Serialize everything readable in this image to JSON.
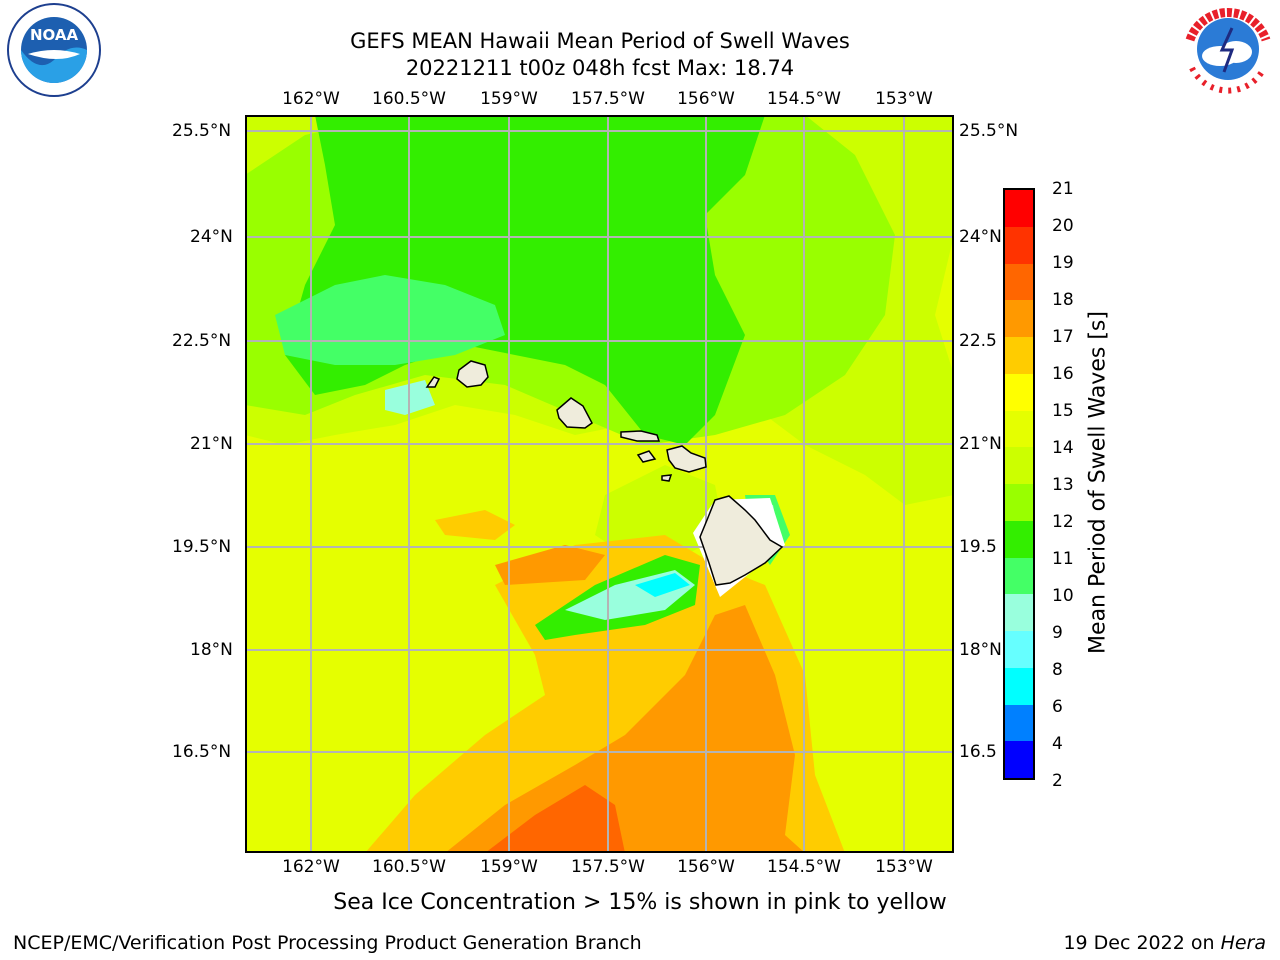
{
  "title": {
    "line1": "GEFS MEAN Hawaii Mean Period of Swell Waves",
    "line2": "20221211 t00z 048h fcst   Max: 18.74"
  },
  "logos": {
    "left": "NOAA",
    "left_ring": "NATIONAL OCEANIC AND ATMOSPHERIC ADMINISTRATION · U.S. DEPARTMENT OF COMMERCE",
    "right_ring": "NATIONAL WEATHER SERVICE"
  },
  "map": {
    "lon_labels": [
      "162°W",
      "160.5°W",
      "159°W",
      "157.5°W",
      "156°W",
      "154.5°W",
      "153°W"
    ],
    "lat_labels_left": [
      "25.5°N",
      "24°N",
      "22.5°N",
      "21°N",
      "19.5°N",
      "18°N",
      "16.5°N"
    ],
    "lat_labels_right": [
      "25.5°N",
      "24°N",
      "22.5",
      "21°N",
      "19.5",
      "18°N",
      "16.5"
    ],
    "grid": true
  },
  "colorbar": {
    "label": "Mean Period of Swell Waves [s]",
    "ticks": [
      "21",
      "20",
      "19",
      "18",
      "17",
      "16",
      "15",
      "14",
      "13",
      "12",
      "11",
      "10",
      "9",
      "8",
      "6",
      "4",
      "2"
    ],
    "colors": [
      "#ff0000",
      "#ff3300",
      "#ff6600",
      "#ff9900",
      "#ffcc00",
      "#ffff00",
      "#e5ff00",
      "#ccff00",
      "#99ff00",
      "#33ee00",
      "#44ff66",
      "#99ffdd",
      "#66ffff",
      "#00ffff",
      "#0080ff",
      "#0000ff"
    ]
  },
  "caption": "Sea Ice Concentration > 15% is shown in pink to yellow",
  "footer": {
    "left": "NCEP/EMC/Verification Post Processing Product Generation Branch",
    "right_prefix": "19 Dec 2022 on ",
    "right_italic": "Hera"
  }
}
